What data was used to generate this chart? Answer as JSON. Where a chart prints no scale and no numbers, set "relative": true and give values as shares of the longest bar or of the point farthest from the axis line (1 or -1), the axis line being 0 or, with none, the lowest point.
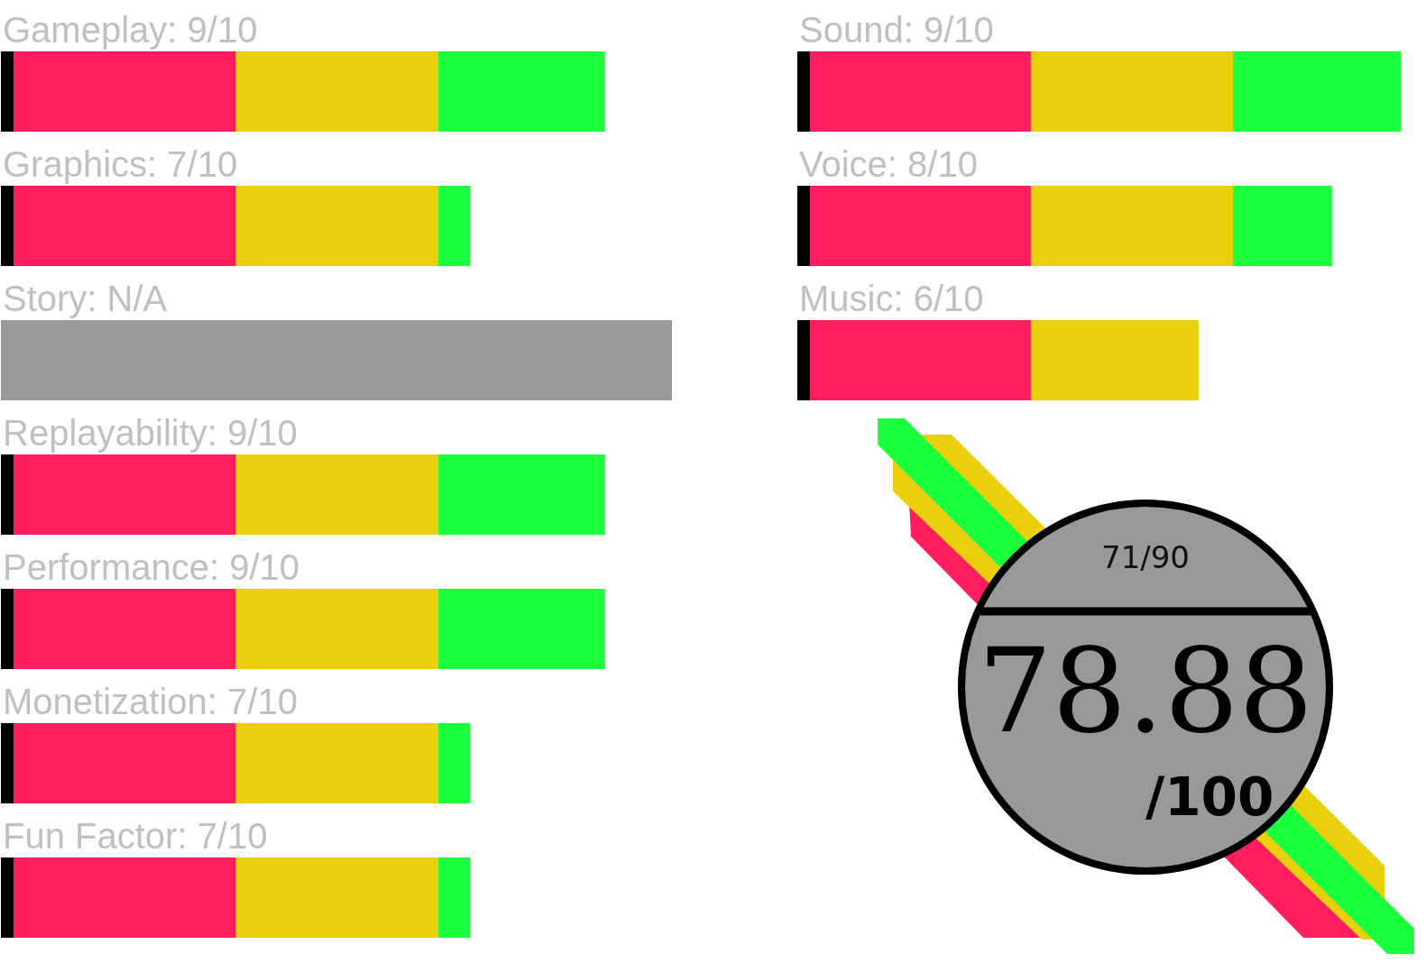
{
  "chart_data": [
    {
      "type": "bar",
      "orientation": "horizontal",
      "stacked": true,
      "relative": true,
      "categories": [
        "Gameplay: 9/10",
        "Graphics: 7/10",
        "Story: N/A",
        "Replayability: 9/10",
        "Performance: 9/10",
        "Monetization: 7/10",
        "Fun Factor: 7/10"
      ],
      "series": [
        {
          "color": "#000000",
          "values": [
            0.019,
            0.019,
            null,
            0.019,
            0.019,
            0.019,
            0.019
          ]
        },
        {
          "color": "#ff1f5e",
          "values": [
            0.331,
            0.331,
            null,
            0.331,
            0.331,
            0.331,
            0.331
          ]
        },
        {
          "color": "#eccf0c",
          "values": [
            0.301,
            0.301,
            null,
            0.301,
            0.301,
            0.301,
            0.301
          ]
        },
        {
          "color": "#1cff3c",
          "values": [
            0.249,
            0.048,
            null,
            0.249,
            0.249,
            0.048,
            0.048
          ]
        },
        {
          "color": "#999999",
          "values": [
            null,
            null,
            1,
            null,
            null,
            null,
            null
          ]
        }
      ]
    },
    {
      "type": "bar",
      "orientation": "horizontal",
      "stacked": true,
      "relative": true,
      "categories": [
        "Sound: 9/10",
        "Voice: 8/10",
        "Music: 6/10"
      ],
      "series": [
        {
          "color": "#000000",
          "values": [
            0.021,
            0.021,
            0.021
          ]
        },
        {
          "color": "#ff1f5e",
          "values": [
            0.366,
            0.366,
            0.366
          ]
        },
        {
          "color": "#eccf0c",
          "values": [
            0.335,
            0.335,
            0.278
          ]
        },
        {
          "color": "#1cff3c",
          "values": [
            0.278,
            0.164,
            null
          ]
        }
      ]
    },
    {
      "type": "other",
      "annotations": [
        "71/90",
        "78.88",
        "/100"
      ]
    }
  ]
}
